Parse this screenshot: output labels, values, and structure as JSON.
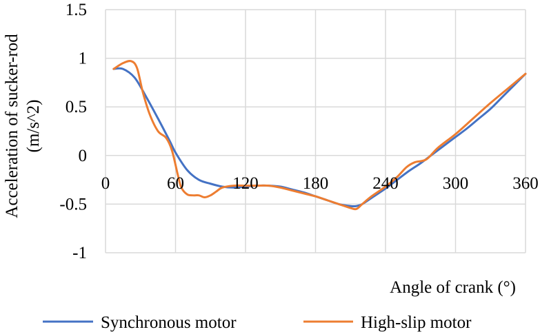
{
  "chart_data": {
    "type": "line",
    "title": "",
    "xlabel": "Angle of crank (°)",
    "ylabel": [
      "Acceleration of sucker-rod",
      "(m/s^2)"
    ],
    "xlim": [
      0,
      360
    ],
    "ylim": [
      -1,
      1.5
    ],
    "xticks": [
      "0",
      "60",
      "120",
      "180",
      "240",
      "300",
      "360"
    ],
    "yticks": [
      "-1",
      "-0.5",
      "0",
      "0.5",
      "1",
      "1.5"
    ],
    "grid": true,
    "legend_position": "bottom",
    "series": [
      {
        "name": "Synchronous motor",
        "color": "#4472C4",
        "x": [
          7,
          15,
          25,
          35,
          45,
          55,
          60,
          70,
          80,
          90,
          100,
          110,
          120,
          130,
          140,
          150,
          160,
          170,
          180,
          190,
          200,
          210,
          215,
          220,
          230,
          240,
          250,
          260,
          270,
          280,
          290,
          300,
          310,
          320,
          330,
          340,
          350,
          360
        ],
        "values": [
          0.89,
          0.89,
          0.8,
          0.6,
          0.38,
          0.15,
          0.03,
          -0.15,
          -0.25,
          -0.29,
          -0.32,
          -0.33,
          -0.32,
          -0.31,
          -0.31,
          -0.32,
          -0.35,
          -0.38,
          -0.42,
          -0.46,
          -0.5,
          -0.52,
          -0.52,
          -0.5,
          -0.42,
          -0.34,
          -0.25,
          -0.16,
          -0.08,
          0.01,
          0.1,
          0.19,
          0.28,
          0.38,
          0.48,
          0.6,
          0.72,
          0.84
        ]
      },
      {
        "name": "High-slip motor",
        "color": "#ED7D31",
        "x": [
          7,
          15,
          22,
          27,
          32,
          38,
          45,
          52,
          57,
          62,
          65,
          70,
          75,
          80,
          85,
          90,
          95,
          100,
          110,
          120,
          130,
          140,
          150,
          160,
          170,
          180,
          190,
          200,
          210,
          215,
          220,
          228,
          240,
          250,
          258,
          265,
          275,
          285,
          300,
          315,
          330,
          345,
          360
        ],
        "values": [
          0.89,
          0.95,
          0.97,
          0.9,
          0.65,
          0.42,
          0.25,
          0.18,
          0.05,
          -0.2,
          -0.33,
          -0.4,
          -0.41,
          -0.41,
          -0.43,
          -0.41,
          -0.37,
          -0.33,
          -0.31,
          -0.31,
          -0.31,
          -0.31,
          -0.33,
          -0.36,
          -0.39,
          -0.42,
          -0.46,
          -0.5,
          -0.54,
          -0.55,
          -0.5,
          -0.42,
          -0.32,
          -0.22,
          -0.12,
          -0.07,
          -0.04,
          0.08,
          0.22,
          0.38,
          0.54,
          0.69,
          0.84
        ]
      }
    ]
  }
}
